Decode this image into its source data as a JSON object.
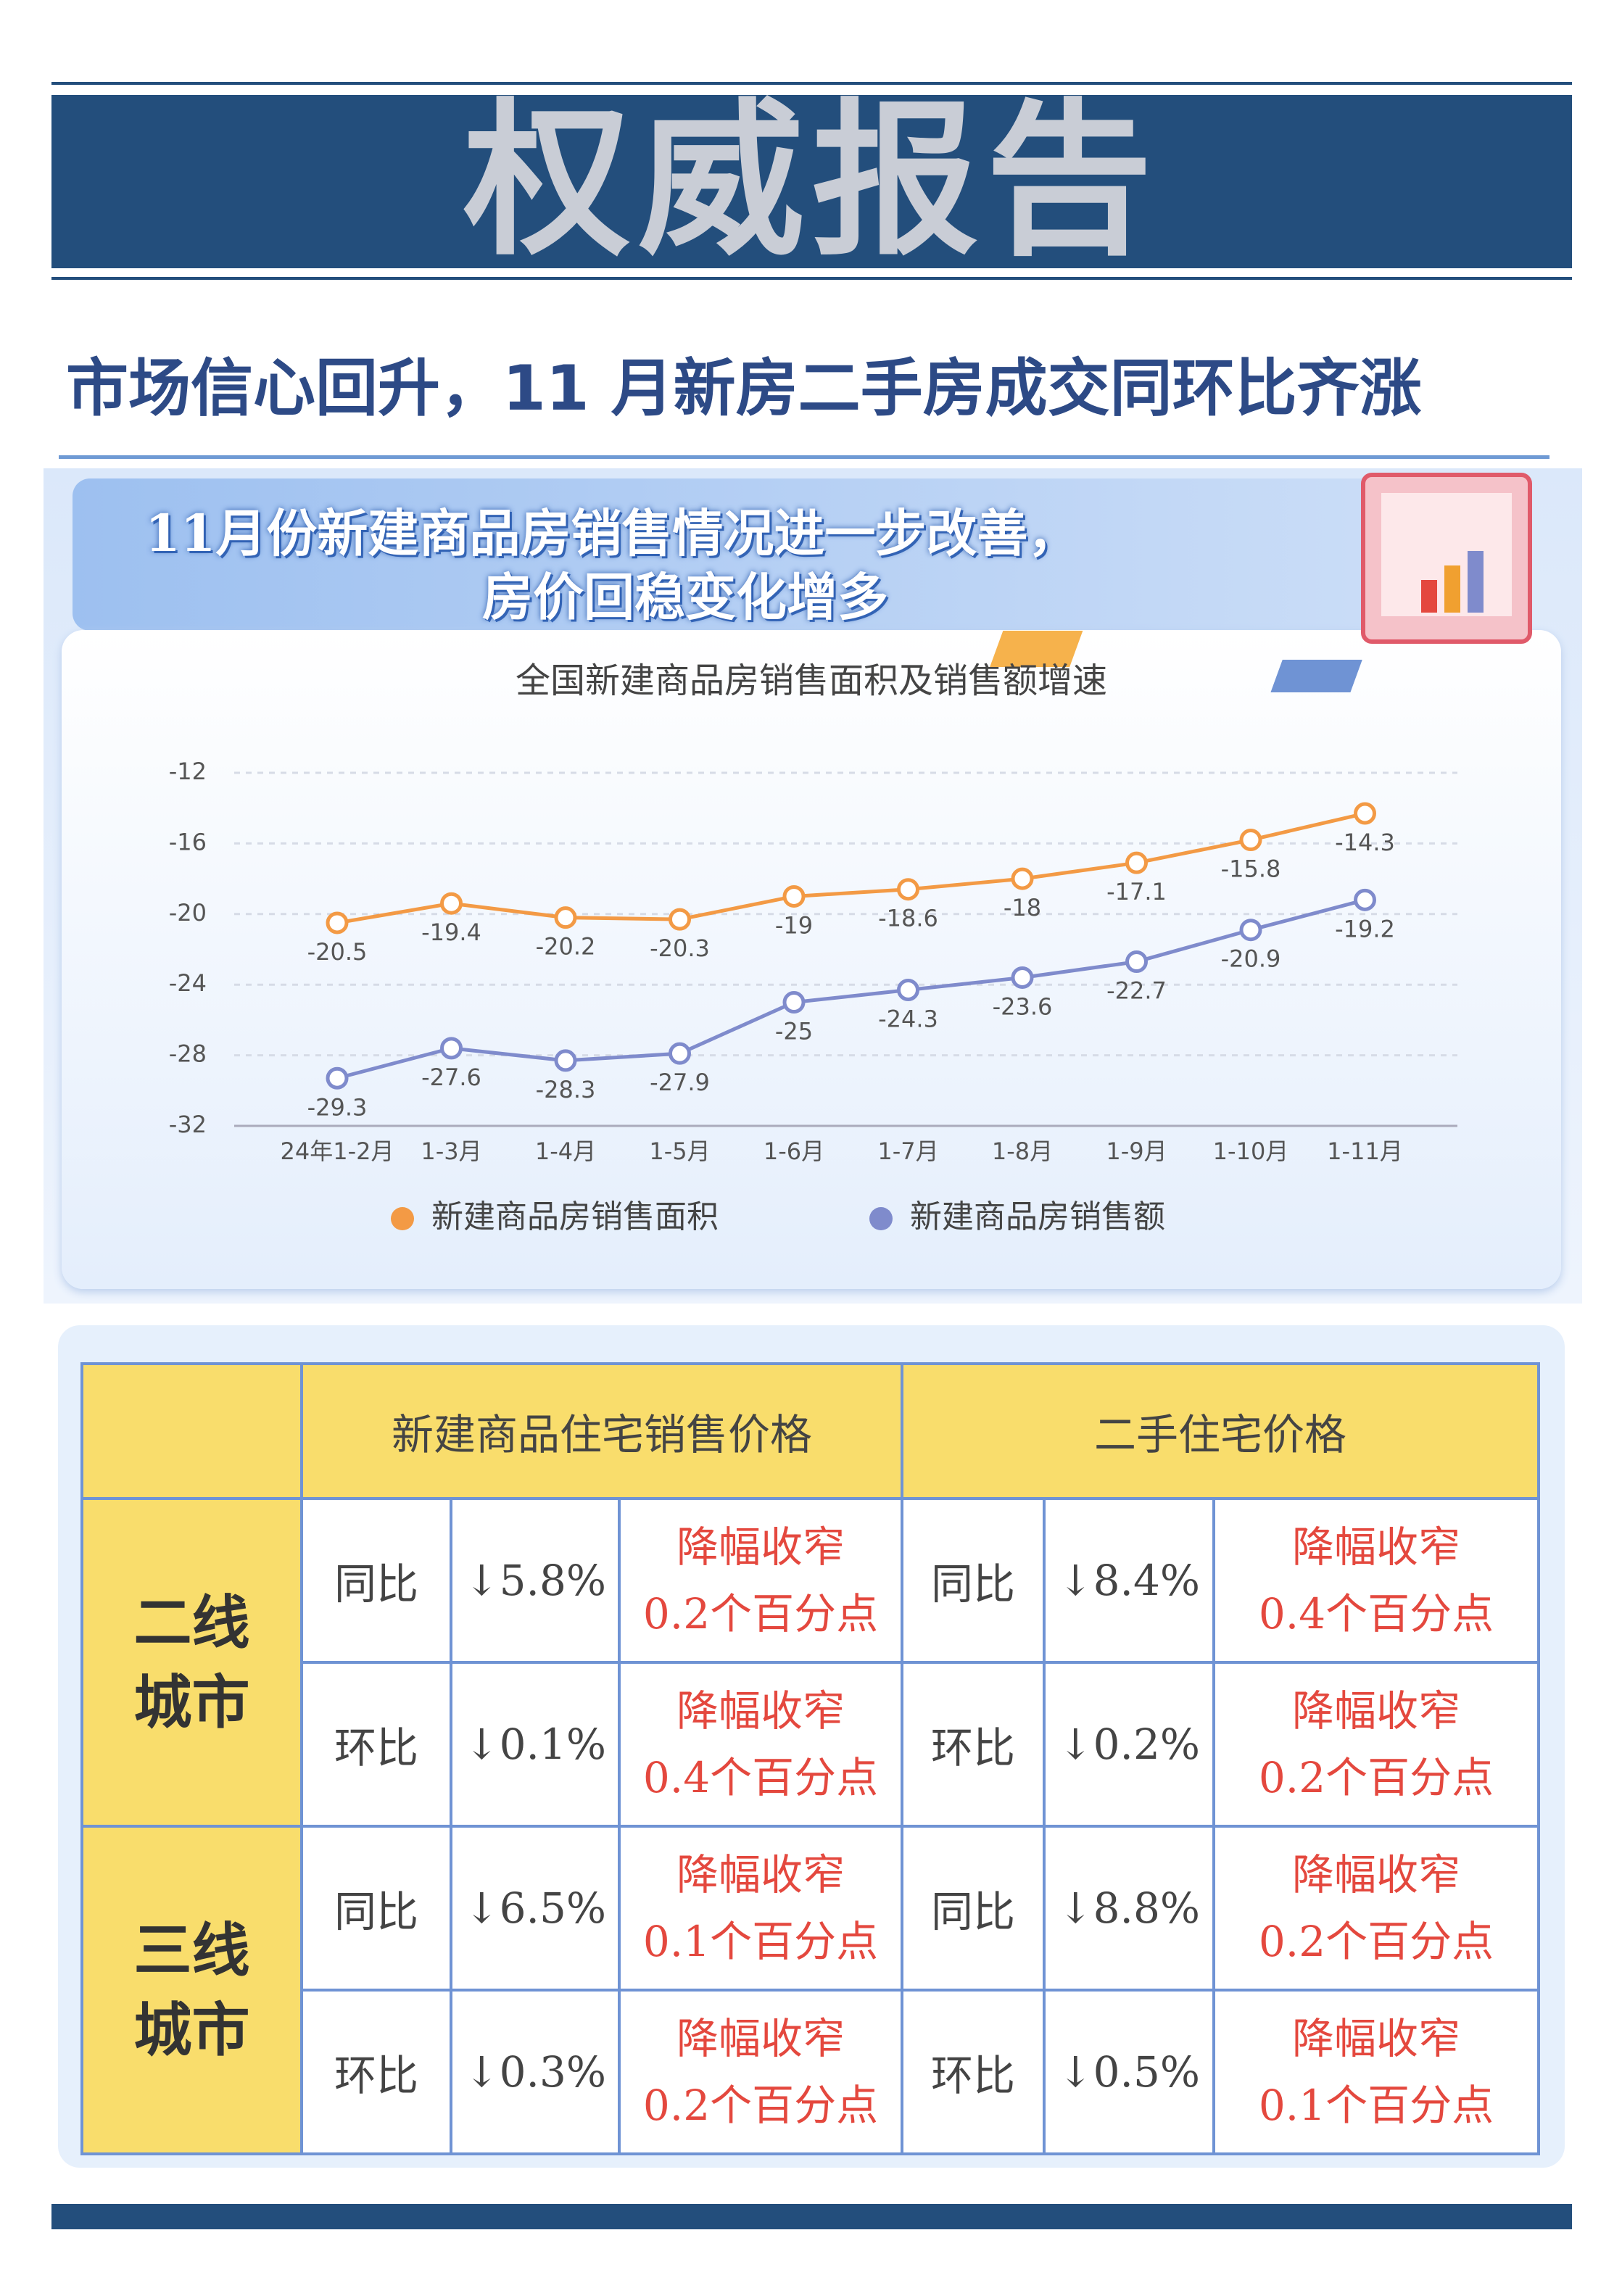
{
  "header": {
    "title": "权威报告"
  },
  "headline": "市场信心回升，11 月新房二手房成交同环比齐涨",
  "banner": {
    "lines": [
      "11月份新建商品房销售情况进一步改善，",
      "房价回稳变化增多"
    ]
  },
  "chart_data": {
    "type": "line",
    "title": "全国新建商品房销售面积及销售额增速",
    "categories": [
      "24年1-2月",
      "1-3月",
      "1-4月",
      "1-5月",
      "1-6月",
      "1-7月",
      "1-8月",
      "1-9月",
      "1-10月",
      "1-11月"
    ],
    "series": [
      {
        "name": "新建商品房销售面积",
        "color": "#f39a45",
        "values": [
          -20.5,
          -19.4,
          -20.2,
          -20.3,
          -19,
          -18.6,
          -18,
          -17.1,
          -15.8,
          -14.3
        ]
      },
      {
        "name": "新建商品房销售额",
        "color": "#7f8bcc",
        "values": [
          -29.3,
          -27.6,
          -28.3,
          -27.9,
          -25,
          -24.3,
          -23.6,
          -22.7,
          -20.9,
          -19.2
        ]
      }
    ],
    "ylim": [
      -32,
      -12
    ],
    "yticks": [
      -12,
      -16,
      -20,
      -24,
      -28,
      -32
    ],
    "grid": true,
    "legend": "bottom"
  },
  "table": {
    "header": [
      "新建商品住宅销售价格",
      "二手住宅价格"
    ],
    "groups": [
      {
        "name": "二线城市",
        "rows": [
          {
            "new": [
              "同比",
              "↓5.8%",
              "降幅收窄",
              "0.2个百分点"
            ],
            "used": [
              "同比",
              "↓8.4%",
              "降幅收窄",
              "0.4个百分点"
            ]
          },
          {
            "new": [
              "环比",
              "↓0.1%",
              "降幅收窄",
              "0.4个百分点"
            ],
            "used": [
              "环比",
              "↓0.2%",
              "降幅收窄",
              "0.2个百分点"
            ]
          }
        ]
      },
      {
        "name": "三线城市",
        "rows": [
          {
            "new": [
              "同比",
              "↓6.5%",
              "降幅收窄",
              "0.1个百分点"
            ],
            "used": [
              "同比",
              "↓8.8%",
              "降幅收窄",
              "0.2个百分点"
            ]
          },
          {
            "new": [
              "环比",
              "↓0.3%",
              "降幅收窄",
              "0.2个百分点"
            ],
            "used": [
              "环比",
              "↓0.5%",
              "降幅收窄",
              "0.1个百分点"
            ]
          }
        ]
      }
    ]
  }
}
